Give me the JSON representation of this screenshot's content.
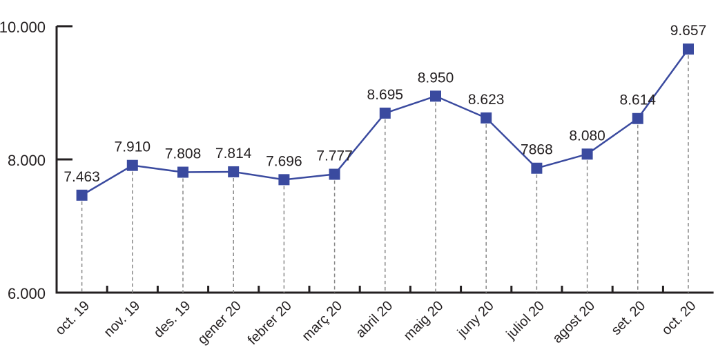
{
  "chart_data": {
    "type": "line",
    "title": "",
    "xlabel": "",
    "ylabel": "",
    "categories": [
      "oct. 19",
      "nov. 19",
      "des. 19",
      "gener 20",
      "febrer 20",
      "març 20",
      "abril 20",
      "maig 20",
      "juny 20",
      "juliol 20",
      "agost 20",
      "set. 20",
      "oct. 20"
    ],
    "values": [
      7463,
      7910,
      7808,
      7814,
      7696,
      7777,
      8695,
      8950,
      8623,
      7868,
      8080,
      8614,
      9657
    ],
    "data_labels": [
      "7.463",
      "7.910",
      "7.808",
      "7.814",
      "7.696",
      "7.777",
      "8.695",
      "8.950",
      "8.623",
      "7868",
      "8.080",
      "8.614",
      "9.657"
    ],
    "ylim": [
      6000,
      10000
    ],
    "yticks": [
      6000,
      8000,
      10000
    ],
    "ytick_labels": [
      "6.000",
      "8.000",
      "10.000"
    ],
    "grid": false,
    "drop_lines": true,
    "colors": {
      "series": "#3a4a9f",
      "axis": "#231f20",
      "drop": "#888888"
    }
  }
}
